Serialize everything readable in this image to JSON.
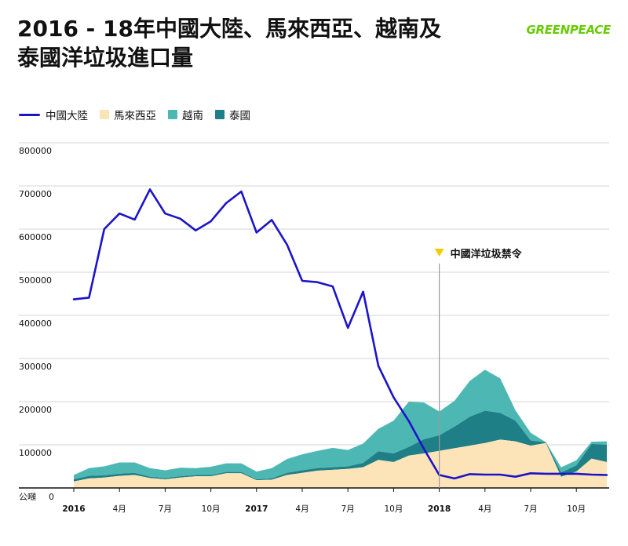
{
  "title_line1": "2016 - 18年中國大陸、馬來西亞、越南及",
  "title_line2": "泰國洋垃圾進口量",
  "brand": "GREENPEACE",
  "colors": {
    "china": "#1c14c8",
    "malaysia": "#fde4b8",
    "vietnam": "#4db8b3",
    "thailand": "#1f7f86",
    "grid": "#d6d6d6",
    "axis": "#111111",
    "ban_line": "#9a9a9a",
    "ban_marker": "#f2cc00",
    "brand": "#66cc00"
  },
  "chart_data": {
    "type": "area",
    "legend": [
      "中國大陸",
      "馬來西亞",
      "越南",
      "泰國"
    ],
    "y_unit": "公噸",
    "ylim": [
      0,
      800000
    ],
    "y_ticks": [
      "0",
      "100000",
      "200000",
      "300000",
      "400000",
      "500000",
      "600000",
      "700000",
      "800000"
    ],
    "x_ticks": [
      {
        "label": "2016",
        "index": 0,
        "bold": true
      },
      {
        "label": "4月",
        "index": 3,
        "bold": false
      },
      {
        "label": "7月",
        "index": 6,
        "bold": false
      },
      {
        "label": "10月",
        "index": 9,
        "bold": false
      },
      {
        "label": "2017",
        "index": 12,
        "bold": true
      },
      {
        "label": "4月",
        "index": 15,
        "bold": false
      },
      {
        "label": "7月",
        "index": 18,
        "bold": false
      },
      {
        "label": "10月",
        "index": 21,
        "bold": false
      },
      {
        "label": "2018",
        "index": 24,
        "bold": true
      },
      {
        "label": "4月",
        "index": 27,
        "bold": false
      },
      {
        "label": "7月",
        "index": 30,
        "bold": false
      },
      {
        "label": "10月",
        "index": 33,
        "bold": false
      }
    ],
    "grid": true,
    "legend_position": "top-left",
    "series": [
      {
        "name": "中國大陸",
        "kind": "line",
        "values": [
          437000,
          441000,
          600000,
          636000,
          622000,
          692000,
          636000,
          624000,
          597000,
          618000,
          660000,
          687000,
          592000,
          621000,
          564000,
          480000,
          477000,
          467000,
          371000,
          455000,
          283000,
          210000,
          155000,
          90000,
          30000,
          22000,
          32000,
          31000,
          31000,
          26000,
          34000,
          33000,
          33000,
          33000,
          31000,
          30000
        ]
      },
      {
        "name": "馬來西亞",
        "kind": "stacked-area",
        "values": [
          15000,
          22000,
          24000,
          28000,
          30000,
          23000,
          20000,
          24000,
          27000,
          27000,
          34000,
          34000,
          18000,
          19000,
          30000,
          35000,
          40000,
          42000,
          44000,
          48000,
          65000,
          60000,
          75000,
          80000,
          86000,
          92000,
          98000,
          104000,
          112000,
          108000,
          98000,
          104000,
          26000,
          38000,
          68000,
          60000
        ]
      },
      {
        "name": "泰國",
        "kind": "stacked-area",
        "values": [
          5000,
          6000,
          5000,
          5000,
          5000,
          3000,
          3000,
          3000,
          3000,
          3000,
          3000,
          3000,
          2000,
          3000,
          5000,
          6000,
          6000,
          6000,
          6000,
          10000,
          20000,
          20000,
          20000,
          33000,
          36000,
          50000,
          67000,
          75000,
          62000,
          48000,
          12000,
          2000,
          10000,
          14000,
          34000,
          40000
        ]
      },
      {
        "name": "越南",
        "kind": "stacked-area",
        "values": [
          10000,
          18000,
          21000,
          26000,
          24000,
          20000,
          18000,
          20000,
          16000,
          19000,
          20000,
          20000,
          18000,
          24000,
          32000,
          37000,
          40000,
          45000,
          38000,
          45000,
          52000,
          76000,
          105000,
          85000,
          55000,
          60000,
          83000,
          95000,
          80000,
          24000,
          18000,
          0,
          12000,
          12000,
          5000,
          8000
        ]
      }
    ],
    "annotation": {
      "text": "中國洋垃圾禁令",
      "index": 24
    }
  }
}
